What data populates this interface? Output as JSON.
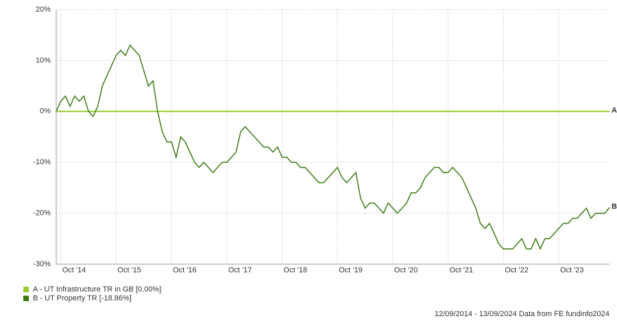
{
  "chart_data": {
    "type": "line",
    "categories": [
      null,
      "Oct '14",
      null,
      null,
      null,
      null,
      null,
      null,
      null,
      null,
      null,
      null,
      null,
      "Oct '15",
      null,
      null,
      null,
      null,
      null,
      null,
      null,
      null,
      null,
      null,
      null,
      "Oct '16",
      null,
      null,
      null,
      null,
      null,
      null,
      null,
      null,
      null,
      null,
      null,
      "Oct '17",
      null,
      null,
      null,
      null,
      null,
      null,
      null,
      null,
      null,
      null,
      null,
      "Oct '18",
      null,
      null,
      null,
      null,
      null,
      null,
      null,
      null,
      null,
      null,
      null,
      "Oct '19",
      null,
      null,
      null,
      null,
      null,
      null,
      null,
      null,
      null,
      null,
      null,
      "Oct '20",
      null,
      null,
      null,
      null,
      null,
      null,
      null,
      null,
      null,
      null,
      null,
      "Oct '21",
      null,
      null,
      null,
      null,
      null,
      null,
      null,
      null,
      null,
      null,
      null,
      "Oct '22",
      null,
      null,
      null,
      null,
      null,
      null,
      null,
      null,
      null,
      null,
      null,
      "Oct '23",
      null,
      null,
      null,
      null,
      null,
      null,
      null,
      null,
      null,
      null,
      null
    ],
    "series": [
      {
        "name": "A - UT Infrastructure TR in GB [0.00%]",
        "end_label": "A",
        "color": "#99cc33",
        "values": [
          0,
          0,
          0,
          0,
          0,
          0,
          0,
          0,
          0,
          0,
          0,
          0,
          0,
          0,
          0,
          0,
          0,
          0,
          0,
          0,
          0,
          0,
          0,
          0,
          0,
          0,
          0,
          0,
          0,
          0,
          0,
          0,
          0,
          0,
          0,
          0,
          0,
          0,
          0,
          0,
          0,
          0,
          0,
          0,
          0,
          0,
          0,
          0,
          0,
          0,
          0,
          0,
          0,
          0,
          0,
          0,
          0,
          0,
          0,
          0,
          0,
          0,
          0,
          0,
          0,
          0,
          0,
          0,
          0,
          0,
          0,
          0,
          0,
          0,
          0,
          0,
          0,
          0,
          0,
          0,
          0,
          0,
          0,
          0,
          0,
          0,
          0,
          0,
          0,
          0,
          0,
          0,
          0,
          0,
          0,
          0,
          0,
          0,
          0,
          0,
          0,
          0,
          0,
          0,
          0,
          0,
          0,
          0,
          0,
          0,
          0,
          0,
          0,
          0,
          0,
          0,
          0,
          0,
          0,
          0,
          0
        ]
      },
      {
        "name": "B - UT Property TR [-18.86%]",
        "end_label": "B",
        "color": "#3d7a14",
        "values": [
          0,
          2,
          3,
          1,
          3,
          2,
          3,
          0,
          -1,
          1,
          5,
          7,
          9,
          11,
          12,
          11,
          13,
          12,
          11,
          8,
          5,
          6,
          0,
          -4,
          -6,
          -6,
          -9,
          -5,
          -6,
          -8,
          -10,
          -11,
          -10,
          -11,
          -12,
          -11,
          -10,
          -10,
          -9,
          -8,
          -4,
          -3,
          -4,
          -5,
          -6,
          -7,
          -7,
          -8,
          -7,
          -9,
          -9,
          -10,
          -10,
          -11,
          -11,
          -12,
          -13,
          -14,
          -14,
          -13,
          -12,
          -11,
          -13,
          -14,
          -13,
          -12,
          -17,
          -19,
          -18,
          -18,
          -19,
          -20,
          -18,
          -19,
          -20,
          -19,
          -18,
          -16,
          -16,
          -15,
          -13,
          -12,
          -11,
          -11,
          -12,
          -12,
          -11,
          -12,
          -13,
          -15,
          -17,
          -19,
          -22,
          -23,
          -22,
          -24,
          -26,
          -27,
          -27,
          -27,
          -26,
          -25,
          -27,
          -27,
          -25,
          -27,
          -25,
          -25,
          -24,
          -23,
          -22,
          -22,
          -21,
          -21,
          -20,
          -19,
          -21,
          -20,
          -20,
          -20,
          -18.86
        ]
      }
    ],
    "ylim": [
      -30,
      20
    ],
    "yticks": [
      {
        "value": -30,
        "label": "-30%"
      },
      {
        "value": -20,
        "label": "-20%"
      },
      {
        "value": -10,
        "label": "-10%"
      },
      {
        "value": 0,
        "label": "0%"
      },
      {
        "value": 10,
        "label": "10%"
      },
      {
        "value": 20,
        "label": "20%"
      }
    ],
    "grid": true,
    "footer": "12/09/2014 - 13/09/2024 Data from FE fundinfo2024"
  }
}
